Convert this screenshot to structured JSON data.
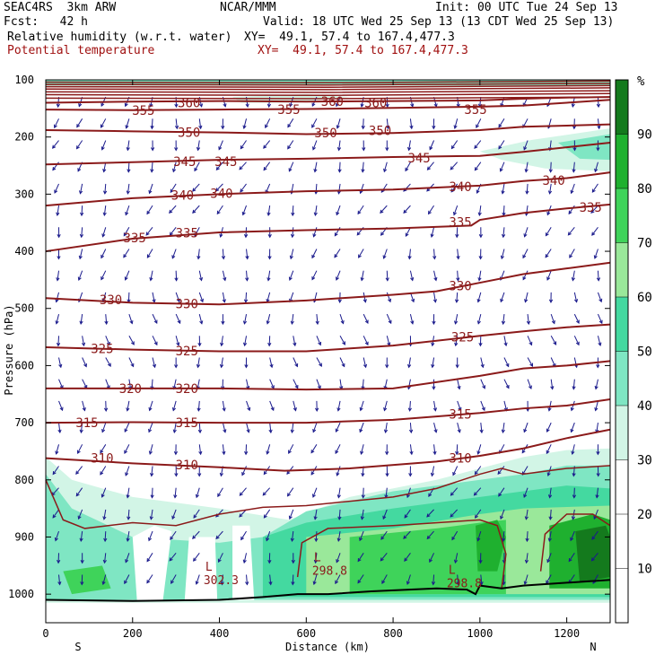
{
  "header": {
    "model": "SEAC4RS  3km ARW",
    "source": "NCAR/MMM",
    "init": "Init: 00 UTC Tue 24 Sep 13",
    "fcst": "Fcst:   42 h",
    "valid": "Valid: 18 UTC Wed 25 Sep 13 (13 CDT Wed 25 Sep 13)",
    "field1": "Relative humidity (w.r.t. water)",
    "field1_xy": "XY=  49.1, 57.4 to 167.4,477.3",
    "field2": "Potential temperature",
    "field2_xy": "XY=  49.1, 57.4 to 167.4,477.3"
  },
  "colors": {
    "theta_contour": "#8b1a1a",
    "terrain": "#000000",
    "wind_vectors": "#1a1a8c",
    "text_red": "#a01010"
  },
  "chart_data": {
    "type": "cross-section",
    "xlabel": "Distance (km)",
    "ylabel": "Pressure (hPa)",
    "xlim": [
      0,
      1300
    ],
    "ylim": [
      1050,
      100
    ],
    "x_ticks": [
      "0",
      "200",
      "400",
      "600",
      "800",
      "1000",
      "1200"
    ],
    "y_ticks": [
      "100",
      "200",
      "300",
      "400",
      "500",
      "600",
      "700",
      "800",
      "900",
      "1000"
    ],
    "x_end_labels": {
      "left": "S",
      "right": "N"
    },
    "colorbar": {
      "unit": "%",
      "levels": [
        10,
        20,
        30,
        40,
        50,
        60,
        70,
        80,
        90
      ],
      "colors": [
        "#ffffff",
        "#ffffff",
        "#ffffff",
        "#d2f5e6",
        "#7fe6c3",
        "#44d9a0",
        "#9ae89a",
        "#3fd35a",
        "#1fb02f",
        "#147a1d"
      ],
      "labels": [
        "10",
        "20",
        "30",
        "40",
        "50",
        "60",
        "70",
        "80",
        "90"
      ]
    },
    "theta_contours": [
      {
        "value": 310,
        "p": [
          [
            0,
            762
          ],
          [
            200,
            771
          ],
          [
            400,
            778
          ],
          [
            550,
            784
          ],
          [
            700,
            780
          ],
          [
            900,
            768
          ],
          [
            1000,
            758
          ],
          [
            1100,
            745
          ],
          [
            1200,
            727
          ],
          [
            1300,
            712
          ]
        ]
      },
      {
        "value": 315,
        "p": [
          [
            0,
            700
          ],
          [
            200,
            699
          ],
          [
            400,
            700
          ],
          [
            600,
            700
          ],
          [
            800,
            695
          ],
          [
            1000,
            683
          ],
          [
            1100,
            675
          ],
          [
            1200,
            670
          ],
          [
            1300,
            659
          ]
        ]
      },
      {
        "value": 320,
        "p": [
          [
            0,
            640
          ],
          [
            200,
            640
          ],
          [
            400,
            640
          ],
          [
            600,
            642
          ],
          [
            800,
            640
          ],
          [
            1000,
            618
          ],
          [
            1100,
            605
          ],
          [
            1200,
            600
          ],
          [
            1300,
            592
          ]
        ]
      },
      {
        "value": 325,
        "p": [
          [
            0,
            568
          ],
          [
            200,
            572
          ],
          [
            400,
            575
          ],
          [
            600,
            575
          ],
          [
            800,
            565
          ],
          [
            1000,
            548
          ],
          [
            1100,
            540
          ],
          [
            1200,
            533
          ],
          [
            1300,
            528
          ]
        ]
      },
      {
        "value": 330,
        "p": [
          [
            0,
            482
          ],
          [
            200,
            490
          ],
          [
            400,
            493
          ],
          [
            600,
            486
          ],
          [
            800,
            476
          ],
          [
            900,
            470
          ],
          [
            1000,
            455
          ],
          [
            1100,
            440
          ],
          [
            1200,
            430
          ],
          [
            1300,
            420
          ]
        ]
      },
      {
        "value": 335,
        "p": [
          [
            0,
            400
          ],
          [
            200,
            378
          ],
          [
            400,
            367
          ],
          [
            600,
            363
          ],
          [
            800,
            360
          ],
          [
            980,
            355
          ],
          [
            1000,
            345
          ],
          [
            1100,
            333
          ],
          [
            1200,
            325
          ],
          [
            1300,
            318
          ]
        ]
      },
      {
        "value": 340,
        "p": [
          [
            0,
            320
          ],
          [
            200,
            307
          ],
          [
            400,
            300
          ],
          [
            600,
            295
          ],
          [
            800,
            292
          ],
          [
            1000,
            285
          ],
          [
            1100,
            277
          ],
          [
            1200,
            272
          ],
          [
            1300,
            262
          ]
        ]
      },
      {
        "value": 345,
        "p": [
          [
            0,
            248
          ],
          [
            200,
            244
          ],
          [
            400,
            240
          ],
          [
            600,
            238
          ],
          [
            800,
            235
          ],
          [
            1000,
            233
          ],
          [
            1100,
            226
          ],
          [
            1200,
            218
          ],
          [
            1300,
            210
          ]
        ]
      },
      {
        "value": 350,
        "p": [
          [
            0,
            188
          ],
          [
            200,
            190
          ],
          [
            400,
            192
          ],
          [
            600,
            195
          ],
          [
            800,
            193
          ],
          [
            1000,
            188
          ],
          [
            1100,
            182
          ],
          [
            1200,
            180
          ],
          [
            1300,
            178
          ]
        ]
      },
      {
        "value": 355,
        "p": [
          [
            0,
            152
          ],
          [
            200,
            153
          ],
          [
            400,
            152
          ],
          [
            600,
            151
          ],
          [
            800,
            149
          ],
          [
            1000,
            147
          ],
          [
            1100,
            145
          ],
          [
            1200,
            140
          ],
          [
            1300,
            135
          ]
        ]
      },
      {
        "value": 360,
        "p": [
          [
            0,
            140
          ],
          [
            200,
            138
          ],
          [
            400,
            137
          ],
          [
            600,
            138
          ],
          [
            800,
            137
          ],
          [
            1000,
            136
          ],
          [
            1100,
            133
          ],
          [
            1200,
            131
          ],
          [
            1300,
            130
          ]
        ]
      }
    ],
    "contour_labels": [
      {
        "text": "360",
        "x": 330,
        "p": 140
      },
      {
        "text": "360",
        "x": 660,
        "p": 138
      },
      {
        "text": "360",
        "x": 760,
        "p": 140
      },
      {
        "text": "355",
        "x": 225,
        "p": 153
      },
      {
        "text": "355",
        "x": 560,
        "p": 152
      },
      {
        "text": "355",
        "x": 990,
        "p": 152
      },
      {
        "text": "350",
        "x": 330,
        "p": 192
      },
      {
        "text": "350",
        "x": 645,
        "p": 193
      },
      {
        "text": "350",
        "x": 770,
        "p": 189
      },
      {
        "text": "345",
        "x": 320,
        "p": 243
      },
      {
        "text": "345",
        "x": 415,
        "p": 243
      },
      {
        "text": "345",
        "x": 860,
        "p": 237
      },
      {
        "text": "340",
        "x": 315,
        "p": 302
      },
      {
        "text": "340",
        "x": 405,
        "p": 299
      },
      {
        "text": "340",
        "x": 955,
        "p": 287
      },
      {
        "text": "340",
        "x": 1170,
        "p": 276
      },
      {
        "text": "335",
        "x": 205,
        "p": 376
      },
      {
        "text": "335",
        "x": 325,
        "p": 368
      },
      {
        "text": "335",
        "x": 955,
        "p": 349
      },
      {
        "text": "335",
        "x": 1255,
        "p": 323
      },
      {
        "text": "330",
        "x": 150,
        "p": 485
      },
      {
        "text": "330",
        "x": 325,
        "p": 492
      },
      {
        "text": "330",
        "x": 955,
        "p": 460
      },
      {
        "text": "325",
        "x": 130,
        "p": 570
      },
      {
        "text": "325",
        "x": 325,
        "p": 574
      },
      {
        "text": "325",
        "x": 960,
        "p": 550
      },
      {
        "text": "320",
        "x": 195,
        "p": 640
      },
      {
        "text": "320",
        "x": 325,
        "p": 640
      },
      {
        "text": "315",
        "x": 95,
        "p": 700
      },
      {
        "text": "315",
        "x": 325,
        "p": 700
      },
      {
        "text": "315",
        "x": 955,
        "p": 685
      },
      {
        "text": "310",
        "x": 130,
        "p": 762
      },
      {
        "text": "310",
        "x": 325,
        "p": 774
      },
      {
        "text": "310",
        "x": 955,
        "p": 762
      }
    ],
    "lows": [
      {
        "text": "302.3",
        "letter": "L",
        "x": 380,
        "p": 975
      },
      {
        "text": "298.8",
        "letter": "L",
        "x": 630,
        "p": 958
      },
      {
        "text": "298.8",
        "letter": "L",
        "x": 940,
        "p": 980
      }
    ]
  }
}
